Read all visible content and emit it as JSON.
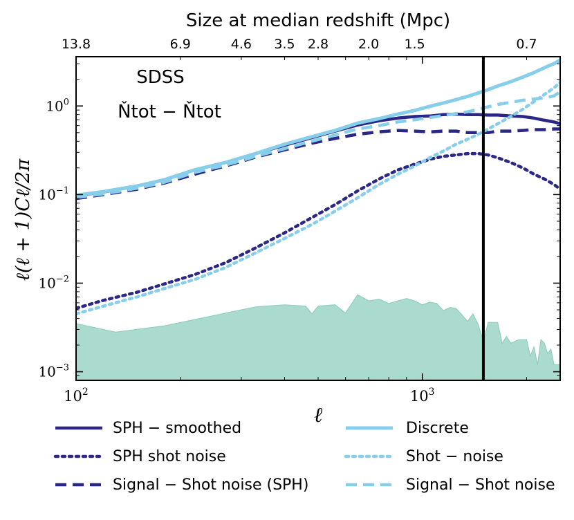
{
  "colors": {
    "dark": "#2b2787",
    "light": "#87ceeb",
    "band": "#8fcfbf",
    "axis": "#000000"
  },
  "chart_data": {
    "type": "line",
    "x_scale": "log",
    "y_scale": "log",
    "xlim": [
      100,
      2500
    ],
    "ylim": [
      0.0008,
      3.6
    ],
    "xlabel": "ℓ",
    "ylabel": "ℓ(ℓ + 1)Cℓ/2π",
    "x_ticks": [
      {
        "value": 100,
        "base": "10",
        "exp": "2"
      },
      {
        "value": 1000,
        "base": "10",
        "exp": "3"
      }
    ],
    "y_ticks": [
      {
        "value": 0.001,
        "base": "10",
        "exp": "−3"
      },
      {
        "value": 0.01,
        "base": "10",
        "exp": "−2"
      },
      {
        "value": 0.1,
        "base": "10",
        "exp": "−1"
      },
      {
        "value": 1,
        "base": "10",
        "exp": "0"
      }
    ],
    "top_axis": {
      "title": "Size at median redshift (Mpc)",
      "ticks": [
        {
          "label": "13.8",
          "x": 100
        },
        {
          "label": "6.9",
          "x": 200
        },
        {
          "label": "4.6",
          "x": 300
        },
        {
          "label": "3.5",
          "x": 400
        },
        {
          "label": "2.8",
          "x": 500
        },
        {
          "label": "2.0",
          "x": 700
        },
        {
          "label": "1.5",
          "x": 950
        },
        {
          "label": "0.7",
          "x": 2000
        }
      ]
    },
    "annotation": {
      "line1": "SDSS",
      "line2": "Ňtot − Ňtot"
    },
    "vline_x": 1500,
    "band": {
      "name": "difference band",
      "x": [
        100,
        130,
        180,
        250,
        330,
        400,
        460,
        480,
        500,
        560,
        600,
        650,
        700,
        750,
        800,
        900,
        950,
        1000,
        1050,
        1100,
        1150,
        1200,
        1250,
        1300,
        1350,
        1400,
        1450,
        1500,
        1550,
        1650,
        1700,
        1750,
        1800,
        1900,
        2000,
        2050,
        2100,
        2150,
        2200,
        2250,
        2300,
        2350,
        2400,
        2500
      ],
      "y": [
        0.0035,
        0.0028,
        0.0033,
        0.0043,
        0.0054,
        0.0057,
        0.0055,
        0.0045,
        0.0055,
        0.0057,
        0.0046,
        0.0074,
        0.0063,
        0.0066,
        0.0059,
        0.0067,
        0.0063,
        0.0057,
        0.0061,
        0.0059,
        0.0049,
        0.0053,
        0.0052,
        0.0044,
        0.0037,
        0.0045,
        0.0034,
        0.0022,
        0.0036,
        0.0036,
        0.0021,
        0.0025,
        0.0021,
        0.0023,
        0.0023,
        0.0015,
        0.0019,
        0.0012,
        0.0023,
        0.0021,
        0.0016,
        0.0018,
        0.0012,
        0.0012
      ]
    },
    "series": [
      {
        "name": "SPH − smoothed",
        "color": "dark",
        "style": "solid",
        "width": 4.5,
        "x": [
          100,
          120,
          150,
          180,
          220,
          270,
          330,
          400,
          480,
          560,
          650,
          750,
          850,
          950,
          1050,
          1150,
          1250,
          1350,
          1450,
          1550,
          1650,
          1800,
          1950,
          2100,
          2250,
          2400,
          2500
        ],
        "y": [
          0.097,
          0.107,
          0.125,
          0.147,
          0.19,
          0.23,
          0.29,
          0.36,
          0.44,
          0.52,
          0.61,
          0.68,
          0.73,
          0.76,
          0.77,
          0.8,
          0.81,
          0.8,
          0.8,
          0.79,
          0.79,
          0.77,
          0.76,
          0.73,
          0.69,
          0.66,
          0.63
        ]
      },
      {
        "name": "SPH shot noise",
        "color": "dark",
        "style": "dot",
        "width": 4.5,
        "x": [
          100,
          120,
          150,
          180,
          220,
          270,
          330,
          400,
          480,
          560,
          650,
          750,
          850,
          950,
          1050,
          1150,
          1250,
          1350,
          1450,
          1550,
          1650,
          1800,
          1950,
          2100,
          2250,
          2400,
          2500
        ],
        "y": [
          0.0052,
          0.0064,
          0.0079,
          0.0098,
          0.0125,
          0.017,
          0.025,
          0.037,
          0.055,
          0.077,
          0.11,
          0.15,
          0.19,
          0.22,
          0.25,
          0.27,
          0.28,
          0.29,
          0.29,
          0.28,
          0.26,
          0.23,
          0.2,
          0.17,
          0.15,
          0.13,
          0.115
        ]
      },
      {
        "name": "Signal − Shot noise (SPH)",
        "color": "dark",
        "style": "dash",
        "width": 4.5,
        "x": [
          100,
          120,
          150,
          180,
          220,
          270,
          330,
          400,
          480,
          560,
          650,
          750,
          850,
          950,
          1050,
          1150,
          1250,
          1350,
          1450,
          1550,
          1650,
          1800,
          1950,
          2100,
          2250,
          2400,
          2500
        ],
        "y": [
          0.09,
          0.1,
          0.115,
          0.135,
          0.17,
          0.21,
          0.265,
          0.32,
          0.38,
          0.43,
          0.48,
          0.51,
          0.53,
          0.52,
          0.51,
          0.52,
          0.52,
          0.5,
          0.5,
          0.5,
          0.52,
          0.52,
          0.53,
          0.54,
          0.54,
          0.55,
          0.55
        ]
      },
      {
        "name": "Discrete",
        "color": "light",
        "style": "solid",
        "width": 5,
        "x": [
          100,
          120,
          150,
          180,
          220,
          270,
          330,
          400,
          480,
          560,
          650,
          750,
          850,
          950,
          1050,
          1150,
          1250,
          1350,
          1450,
          1550,
          1650,
          1800,
          1950,
          2100,
          2250,
          2400,
          2500
        ],
        "y": [
          0.098,
          0.108,
          0.125,
          0.147,
          0.19,
          0.23,
          0.29,
          0.37,
          0.45,
          0.53,
          0.64,
          0.72,
          0.81,
          0.89,
          0.99,
          1.08,
          1.18,
          1.28,
          1.4,
          1.53,
          1.68,
          1.88,
          2.12,
          2.38,
          2.7,
          3.0,
          3.3
        ]
      },
      {
        "name": "Shot − noise",
        "color": "light",
        "style": "dot",
        "width": 4.5,
        "x": [
          100,
          120,
          150,
          180,
          220,
          270,
          330,
          400,
          480,
          560,
          650,
          750,
          850,
          950,
          1050,
          1150,
          1250,
          1350,
          1450,
          1550,
          1650,
          1800,
          1950,
          2100,
          2250,
          2400,
          2500
        ],
        "y": [
          0.0045,
          0.0055,
          0.007,
          0.0087,
          0.011,
          0.015,
          0.022,
          0.032,
          0.046,
          0.065,
          0.092,
          0.13,
          0.17,
          0.21,
          0.26,
          0.31,
          0.37,
          0.42,
          0.48,
          0.55,
          0.63,
          0.76,
          0.92,
          1.12,
          1.35,
          1.6,
          1.85
        ]
      },
      {
        "name": "Signal − Shot noise",
        "color": "light",
        "style": "dash",
        "width": 4.5,
        "x": [
          100,
          120,
          150,
          180,
          220,
          270,
          330,
          400,
          480,
          560,
          650,
          750,
          850,
          950,
          1050,
          1150,
          1250,
          1350,
          1450,
          1550,
          1650,
          1800,
          1950,
          2100,
          2250,
          2400,
          2500
        ],
        "y": [
          0.093,
          0.102,
          0.118,
          0.138,
          0.178,
          0.215,
          0.27,
          0.33,
          0.4,
          0.47,
          0.55,
          0.6,
          0.66,
          0.7,
          0.74,
          0.78,
          0.82,
          0.86,
          0.92,
          0.98,
          1.04,
          1.1,
          1.16,
          1.2,
          1.23,
          1.3,
          1.45
        ]
      }
    ],
    "legend": [
      {
        "label": "SPH − smoothed",
        "series": 0
      },
      {
        "label": "SPH shot noise",
        "series": 1
      },
      {
        "label": "Signal − Shot noise (SPH)",
        "series": 2
      },
      {
        "label": "Discrete",
        "series": 3
      },
      {
        "label": "Shot − noise",
        "series": 4
      },
      {
        "label": "Signal − Shot noise",
        "series": 5
      }
    ]
  }
}
